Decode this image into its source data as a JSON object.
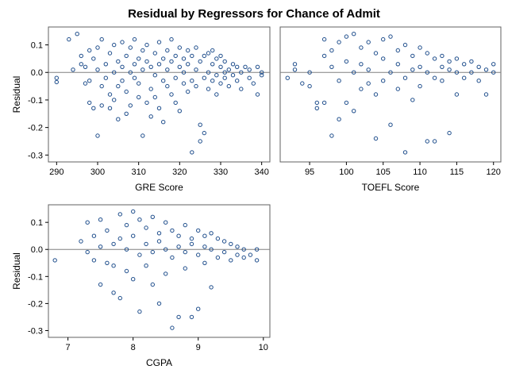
{
  "figure": {
    "title": "Residual by Regressors for Chance of Admit",
    "point_color": "#1f4e8c",
    "zero_line_color": "#808080",
    "frame_color": "#606060"
  },
  "chart_data": [
    {
      "type": "scatter",
      "id": "gre",
      "xlabel": "GRE Score",
      "ylabel": "Residual",
      "xlim": [
        288,
        342
      ],
      "ylim": [
        -0.325,
        0.165
      ],
      "xticks": [
        290,
        300,
        310,
        320,
        330,
        340
      ],
      "yticks": [
        0.1,
        0.0,
        -0.1,
        -0.2,
        -0.3
      ],
      "ytick_labels": [
        "0.1",
        "0.0",
        "-0.1",
        "-0.2",
        "-0.3"
      ],
      "points": [
        [
          290,
          -0.02
        ],
        [
          290,
          -0.035
        ],
        [
          293,
          0.12
        ],
        [
          294,
          0.01
        ],
        [
          295,
          0.14
        ],
        [
          296,
          0.06
        ],
        [
          296,
          0.03
        ],
        [
          297,
          -0.04
        ],
        [
          297,
          0.02
        ],
        [
          298,
          -0.11
        ],
        [
          298,
          0.08
        ],
        [
          298,
          -0.03
        ],
        [
          299,
          -0.13
        ],
        [
          299,
          0.05
        ],
        [
          300,
          -0.23
        ],
        [
          300,
          0.01
        ],
        [
          300,
          0.09
        ],
        [
          301,
          -0.05
        ],
        [
          301,
          0.12
        ],
        [
          301,
          -0.12
        ],
        [
          302,
          0.03
        ],
        [
          302,
          -0.02
        ],
        [
          303,
          0.07
        ],
        [
          303,
          -0.08
        ],
        [
          303,
          -0.13
        ],
        [
          304,
          0.0
        ],
        [
          304,
          0.1
        ],
        [
          304,
          -0.1
        ],
        [
          305,
          -0.05
        ],
        [
          305,
          0.04
        ],
        [
          305,
          -0.17
        ],
        [
          306,
          0.02
        ],
        [
          306,
          -0.03
        ],
        [
          306,
          0.11
        ],
        [
          307,
          -0.15
        ],
        [
          307,
          0.06
        ],
        [
          307,
          -0.07
        ],
        [
          308,
          0.0
        ],
        [
          308,
          0.09
        ],
        [
          308,
          -0.12
        ],
        [
          309,
          0.03
        ],
        [
          309,
          -0.02
        ],
        [
          309,
          0.12
        ],
        [
          310,
          -0.09
        ],
        [
          310,
          0.05
        ],
        [
          310,
          -0.04
        ],
        [
          311,
          0.08
        ],
        [
          311,
          -0.23
        ],
        [
          311,
          0.01
        ],
        [
          312,
          -0.11
        ],
        [
          312,
          0.04
        ],
        [
          312,
          0.1
        ],
        [
          313,
          -0.06
        ],
        [
          313,
          0.02
        ],
        [
          313,
          -0.16
        ],
        [
          314,
          0.07
        ],
        [
          314,
          -0.01
        ],
        [
          314,
          -0.09
        ],
        [
          315,
          0.03
        ],
        [
          315,
          0.11
        ],
        [
          315,
          -0.13
        ],
        [
          316,
          -0.03
        ],
        [
          316,
          0.05
        ],
        [
          316,
          -0.18
        ],
        [
          317,
          0.08
        ],
        [
          317,
          -0.05
        ],
        [
          317,
          0.01
        ],
        [
          318,
          -0.08
        ],
        [
          318,
          0.04
        ],
        [
          318,
          0.12
        ],
        [
          319,
          -0.02
        ],
        [
          319,
          0.06
        ],
        [
          319,
          -0.11
        ],
        [
          320,
          0.02
        ],
        [
          320,
          -0.14
        ],
        [
          320,
          0.09
        ],
        [
          321,
          -0.04
        ],
        [
          321,
          0.05
        ],
        [
          321,
          0.0
        ],
        [
          322,
          -0.07
        ],
        [
          322,
          0.08
        ],
        [
          322,
          0.03
        ],
        [
          323,
          -0.29
        ],
        [
          323,
          -0.03
        ],
        [
          323,
          0.06
        ],
        [
          324,
          -0.05
        ],
        [
          324,
          0.01
        ],
        [
          324,
          0.09
        ],
        [
          325,
          -0.19
        ],
        [
          325,
          -0.25
        ],
        [
          325,
          0.04
        ],
        [
          326,
          -0.22
        ],
        [
          326,
          -0.02
        ],
        [
          326,
          0.06
        ],
        [
          327,
          0.0
        ],
        [
          327,
          0.07
        ],
        [
          327,
          -0.06
        ],
        [
          328,
          0.03
        ],
        [
          328,
          -0.03
        ],
        [
          328,
          0.08
        ],
        [
          329,
          -0.01
        ],
        [
          329,
          0.05
        ],
        [
          329,
          -0.08
        ],
        [
          330,
          0.02
        ],
        [
          330,
          -0.04
        ],
        [
          330,
          0.06
        ],
        [
          331,
          0.0
        ],
        [
          331,
          -0.02
        ],
        [
          331,
          0.04
        ],
        [
          332,
          0.01
        ],
        [
          332,
          -0.05
        ],
        [
          333,
          0.03
        ],
        [
          333,
          -0.01
        ],
        [
          334,
          0.02
        ],
        [
          334,
          -0.03
        ],
        [
          335,
          0.0
        ],
        [
          335,
          -0.06
        ],
        [
          336,
          0.02
        ],
        [
          337,
          -0.02
        ],
        [
          337,
          0.01
        ],
        [
          338,
          -0.04
        ],
        [
          339,
          -0.08
        ],
        [
          339,
          0.02
        ],
        [
          340,
          -0.01
        ],
        [
          340,
          0.0
        ]
      ]
    },
    {
      "type": "scatter",
      "id": "toefl",
      "xlabel": "TOEFL Score",
      "ylabel": "",
      "xlim": [
        91,
        121
      ],
      "ylim": [
        -0.325,
        0.165
      ],
      "xticks": [
        95,
        100,
        105,
        110,
        115,
        120
      ],
      "yticks": [],
      "ytick_labels": [],
      "points": [
        [
          92,
          -0.02
        ],
        [
          93,
          0.01
        ],
        [
          93,
          0.03
        ],
        [
          94,
          -0.04
        ],
        [
          95,
          -0.05
        ],
        [
          95,
          0.0
        ],
        [
          96,
          -0.11
        ],
        [
          96,
          -0.13
        ],
        [
          97,
          0.12
        ],
        [
          97,
          -0.11
        ],
        [
          97,
          0.06
        ],
        [
          98,
          -0.23
        ],
        [
          98,
          0.08
        ],
        [
          98,
          0.02
        ],
        [
          99,
          -0.17
        ],
        [
          99,
          -0.03
        ],
        [
          99,
          0.11
        ],
        [
          100,
          0.13
        ],
        [
          100,
          -0.11
        ],
        [
          100,
          0.04
        ],
        [
          101,
          0.14
        ],
        [
          101,
          -0.14
        ],
        [
          101,
          0.0
        ],
        [
          102,
          0.09
        ],
        [
          102,
          -0.06
        ],
        [
          102,
          0.03
        ],
        [
          103,
          0.11
        ],
        [
          103,
          -0.04
        ],
        [
          103,
          0.01
        ],
        [
          104,
          -0.24
        ],
        [
          104,
          0.07
        ],
        [
          104,
          -0.08
        ],
        [
          105,
          0.12
        ],
        [
          105,
          -0.03
        ],
        [
          105,
          0.05
        ],
        [
          106,
          0.13
        ],
        [
          106,
          -0.19
        ],
        [
          106,
          0.0
        ],
        [
          107,
          0.08
        ],
        [
          107,
          -0.06
        ],
        [
          107,
          0.03
        ],
        [
          108,
          0.1
        ],
        [
          108,
          -0.29
        ],
        [
          108,
          -0.02
        ],
        [
          109,
          0.06
        ],
        [
          109,
          -0.1
        ],
        [
          109,
          0.01
        ],
        [
          110,
          0.09
        ],
        [
          110,
          -0.05
        ],
        [
          110,
          0.02
        ],
        [
          111,
          0.07
        ],
        [
          111,
          -0.25
        ],
        [
          111,
          0.0
        ],
        [
          112,
          0.05
        ],
        [
          112,
          -0.25
        ],
        [
          112,
          -0.02
        ],
        [
          113,
          0.06
        ],
        [
          113,
          -0.03
        ],
        [
          113,
          0.02
        ],
        [
          114,
          0.04
        ],
        [
          114,
          -0.22
        ],
        [
          114,
          0.01
        ],
        [
          115,
          0.05
        ],
        [
          115,
          -0.08
        ],
        [
          115,
          0.0
        ],
        [
          116,
          0.03
        ],
        [
          116,
          -0.02
        ],
        [
          117,
          0.04
        ],
        [
          117,
          0.0
        ],
        [
          118,
          0.02
        ],
        [
          118,
          -0.03
        ],
        [
          119,
          0.01
        ],
        [
          119,
          -0.08
        ],
        [
          120,
          0.03
        ],
        [
          120,
          0.0
        ]
      ]
    },
    {
      "type": "scatter",
      "id": "cgpa",
      "xlabel": "CGPA",
      "ylabel": "Residual",
      "xlim": [
        6.7,
        10.1
      ],
      "ylim": [
        -0.325,
        0.165
      ],
      "xticks": [
        7,
        8,
        9,
        10
      ],
      "yticks": [
        0.1,
        0.0,
        -0.1,
        -0.2,
        -0.3
      ],
      "ytick_labels": [
        "0.1",
        "0.0",
        "-0.1",
        "-0.2",
        "-0.3"
      ],
      "points": [
        [
          6.8,
          -0.04
        ],
        [
          7.2,
          0.03
        ],
        [
          7.3,
          0.1
        ],
        [
          7.3,
          -0.01
        ],
        [
          7.4,
          0.05
        ],
        [
          7.4,
          -0.04
        ],
        [
          7.5,
          0.11
        ],
        [
          7.5,
          -0.13
        ],
        [
          7.5,
          0.01
        ],
        [
          7.6,
          -0.05
        ],
        [
          7.6,
          0.07
        ],
        [
          7.7,
          -0.06
        ],
        [
          7.7,
          0.02
        ],
        [
          7.7,
          -0.16
        ],
        [
          7.8,
          0.13
        ],
        [
          7.8,
          -0.18
        ],
        [
          7.8,
          0.04
        ],
        [
          7.9,
          0.09
        ],
        [
          7.9,
          -0.08
        ],
        [
          7.9,
          0.0
        ],
        [
          8.0,
          0.14
        ],
        [
          8.0,
          -0.11
        ],
        [
          8.0,
          0.05
        ],
        [
          8.1,
          0.11
        ],
        [
          8.1,
          -0.23
        ],
        [
          8.1,
          -0.02
        ],
        [
          8.2,
          0.08
        ],
        [
          8.2,
          -0.06
        ],
        [
          8.2,
          0.02
        ],
        [
          8.3,
          0.12
        ],
        [
          8.3,
          -0.13
        ],
        [
          8.3,
          -0.01
        ],
        [
          8.4,
          0.06
        ],
        [
          8.4,
          -0.2
        ],
        [
          8.4,
          0.03
        ],
        [
          8.5,
          0.1
        ],
        [
          8.5,
          -0.09
        ],
        [
          8.5,
          0.0
        ],
        [
          8.6,
          0.07
        ],
        [
          8.6,
          -0.29
        ],
        [
          8.6,
          -0.03
        ],
        [
          8.7,
          0.05
        ],
        [
          8.7,
          -0.25
        ],
        [
          8.7,
          0.01
        ],
        [
          8.8,
          0.09
        ],
        [
          8.8,
          -0.07
        ],
        [
          8.8,
          -0.01
        ],
        [
          8.9,
          0.04
        ],
        [
          8.9,
          -0.25
        ],
        [
          8.9,
          0.02
        ],
        [
          9.0,
          0.07
        ],
        [
          9.0,
          -0.22
        ],
        [
          9.0,
          -0.02
        ],
        [
          9.1,
          0.05
        ],
        [
          9.1,
          -0.05
        ],
        [
          9.1,
          0.01
        ],
        [
          9.2,
          0.06
        ],
        [
          9.2,
          -0.14
        ],
        [
          9.2,
          0.0
        ],
        [
          9.3,
          0.04
        ],
        [
          9.3,
          -0.03
        ],
        [
          9.4,
          0.03
        ],
        [
          9.4,
          -0.01
        ],
        [
          9.5,
          0.02
        ],
        [
          9.5,
          -0.04
        ],
        [
          9.6,
          0.01
        ],
        [
          9.6,
          -0.02
        ],
        [
          9.7,
          0.0
        ],
        [
          9.7,
          -0.03
        ],
        [
          9.8,
          -0.02
        ],
        [
          9.9,
          -0.04
        ],
        [
          9.9,
          0.0
        ]
      ]
    }
  ]
}
